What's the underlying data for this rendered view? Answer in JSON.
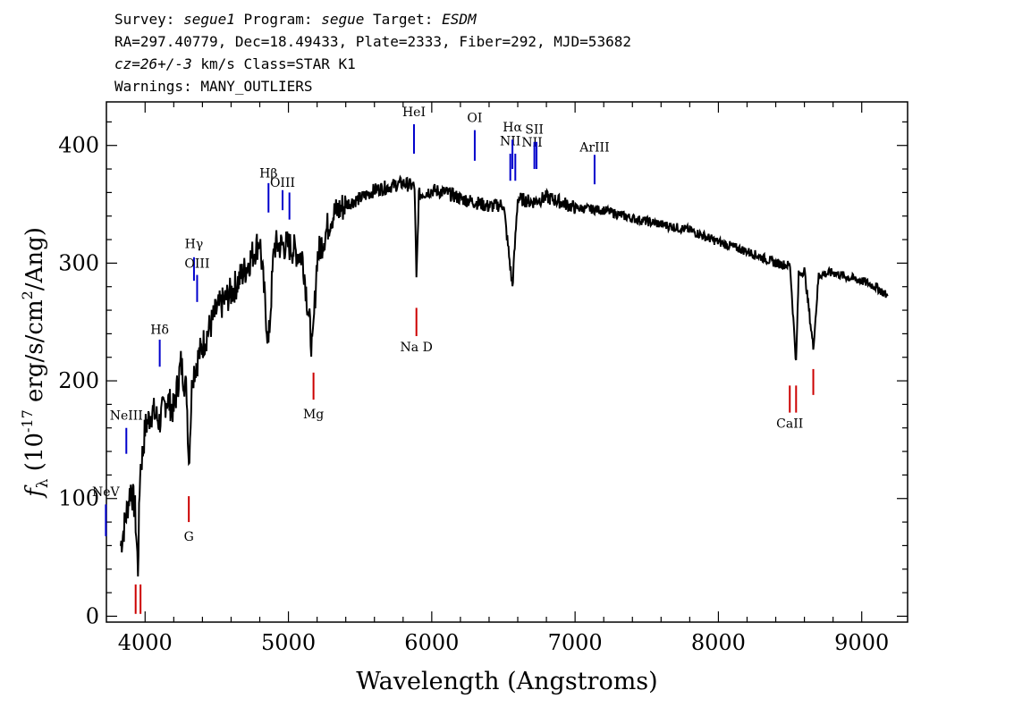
{
  "header": {
    "survey_label": "Survey: ",
    "survey": "segue1",
    "program_label": " Program: ",
    "program": "segue",
    "target_label": " Target: ",
    "target": "ESDM",
    "line2": "RA=297.40779, Dec=18.49433, Plate=2333, Fiber=292, MJD=53682",
    "cz": "cz=26+/-3",
    "class_text": " km/s Class=STAR K1",
    "warnings": "Warnings: MANY_OUTLIERS"
  },
  "chart_data": {
    "type": "line",
    "xlabel": "Wavelength (Angstroms)",
    "ylabel": {
      "symbol": "f",
      "subscript": "λ",
      "part1": " (10",
      "exponent": "-17",
      "part2": " erg/s/cm",
      "exponent2": "2",
      "part3": "/Ang)"
    },
    "xlim": [
      3730,
      9320
    ],
    "ylim": [
      -5,
      437
    ],
    "xticks": [
      4000,
      5000,
      6000,
      7000,
      8000,
      9000
    ],
    "yticks": [
      0,
      100,
      200,
      300,
      400
    ],
    "series": [
      {
        "color": "#000000",
        "x": [
          3830,
          3860,
          3900,
          3930,
          3950,
          3965,
          3985,
          4000,
          4050,
          4100,
          4150,
          4200,
          4250,
          4290,
          4305,
          4330,
          4400,
          4500,
          4600,
          4700,
          4800,
          4861,
          4900,
          5000,
          5100,
          5167,
          5200,
          5300,
          5400,
          5500,
          5600,
          5700,
          5800,
          5880,
          5893,
          5910,
          6000,
          6100,
          6200,
          6300,
          6400,
          6500,
          6563,
          6600,
          6700,
          6800,
          6900,
          7000,
          7200,
          7400,
          7600,
          7800,
          8000,
          8200,
          8400,
          8500,
          8542,
          8560,
          8600,
          8662,
          8700,
          8800,
          8900,
          9000,
          9100,
          9180
        ],
        "y": [
          60,
          80,
          110,
          90,
          40,
          125,
          140,
          160,
          175,
          165,
          185,
          175,
          215,
          190,
          130,
          205,
          230,
          260,
          275,
          295,
          320,
          230,
          315,
          315,
          305,
          225,
          305,
          340,
          350,
          355,
          362,
          365,
          368,
          365,
          285,
          358,
          362,
          360,
          355,
          352,
          348,
          350,
          280,
          355,
          352,
          356,
          352,
          347,
          345,
          338,
          333,
          328,
          318,
          310,
          300,
          298,
          215,
          290,
          294,
          228,
          290,
          292,
          288,
          285,
          280,
          272
        ]
      }
    ],
    "line_markers": [
      {
        "label": "NeV",
        "x": 3726,
        "color": "#0000cc",
        "label_y": 102,
        "y_top": 95,
        "y_bottom": 68
      },
      {
        "label": "NeIII",
        "x": 3869,
        "color": "#0000cc",
        "label_y": 167,
        "y_top": 160,
        "y_bottom": 138
      },
      {
        "label": "Hδ",
        "x": 4102,
        "color": "#0000cc",
        "label_y": 240,
        "y_top": 235,
        "y_bottom": 212
      },
      {
        "label": "Hγ",
        "x": 4341,
        "color": "#0000cc",
        "label_y": 313,
        "y_top": 305,
        "y_bottom": 285
      },
      {
        "label": "OIII",
        "x": 4363,
        "color": "#0000cc",
        "label_y": 296,
        "y_top": 290,
        "y_bottom": 267
      },
      {
        "label": "Hβ",
        "x": 4861,
        "color": "#0000cc",
        "label_y": 373,
        "y_top": 368,
        "y_bottom": 343
      },
      {
        "label": "OIII",
        "x": 4959,
        "color": "#0000cc",
        "label_y": 365,
        "y_top": 362,
        "y_bottom": 345
      },
      {
        "label": "",
        "x": 5007,
        "color": "#0000cc",
        "label_y": 0,
        "y_top": 360,
        "y_bottom": 337
      },
      {
        "label": "HeI",
        "x": 5876,
        "color": "#0000cc",
        "label_y": 425,
        "y_top": 418,
        "y_bottom": 393
      },
      {
        "label": "OI",
        "x": 6300,
        "color": "#0000cc",
        "label_y": 420,
        "y_top": 413,
        "y_bottom": 387
      },
      {
        "label": "NII",
        "x": 6548,
        "color": "#0000cc",
        "label_y": 400,
        "y_top": 393,
        "y_bottom": 370
      },
      {
        "label": "Hα",
        "x": 6563,
        "color": "#0000cc",
        "label_y": 412,
        "y_top": 405,
        "y_bottom": 380
      },
      {
        "label": "",
        "x": 6583,
        "color": "#0000cc",
        "label_y": 0,
        "y_top": 393,
        "y_bottom": 370
      },
      {
        "label": "NII",
        "x": 6700,
        "color": "#0000cc",
        "label_y": 399,
        "y_top": 0,
        "y_bottom": 0
      },
      {
        "label": "SII",
        "x": 6716,
        "color": "#0000cc",
        "label_y": 410,
        "y_top": 403,
        "y_bottom": 380
      },
      {
        "label": "",
        "x": 6731,
        "color": "#0000cc",
        "label_y": 0,
        "y_top": 403,
        "y_bottom": 380
      },
      {
        "label": "ArIII",
        "x": 7136,
        "color": "#0000cc",
        "label_y": 395,
        "y_top": 392,
        "y_bottom": 367
      },
      {
        "label": "Na D",
        "x": 5893,
        "color": "#cc0000",
        "label_y": 225,
        "y_top": 262,
        "y_bottom": 238
      },
      {
        "label": "Mg",
        "x": 5175,
        "color": "#cc0000",
        "label_y": 168,
        "y_top": 207,
        "y_bottom": 184
      },
      {
        "label": "G",
        "x": 4305,
        "color": "#cc0000",
        "label_y": 64,
        "y_top": 102,
        "y_bottom": 80
      },
      {
        "label": "CaII",
        "x": 8498,
        "color": "#cc0000",
        "label_y": 160,
        "y_top": 196,
        "y_bottom": 173
      },
      {
        "label": "",
        "x": 8542,
        "color": "#cc0000",
        "label_y": 0,
        "y_top": 196,
        "y_bottom": 173
      },
      {
        "label": "",
        "x": 8662,
        "color": "#cc0000",
        "label_y": 0,
        "y_top": 210,
        "y_bottom": 188
      },
      {
        "label": "",
        "x": 3934,
        "color": "#cc0000",
        "label_y": 0,
        "y_top": 27,
        "y_bottom": 2
      },
      {
        "label": "",
        "x": 3968,
        "color": "#cc0000",
        "label_y": 0,
        "y_top": 27,
        "y_bottom": 2
      }
    ]
  }
}
